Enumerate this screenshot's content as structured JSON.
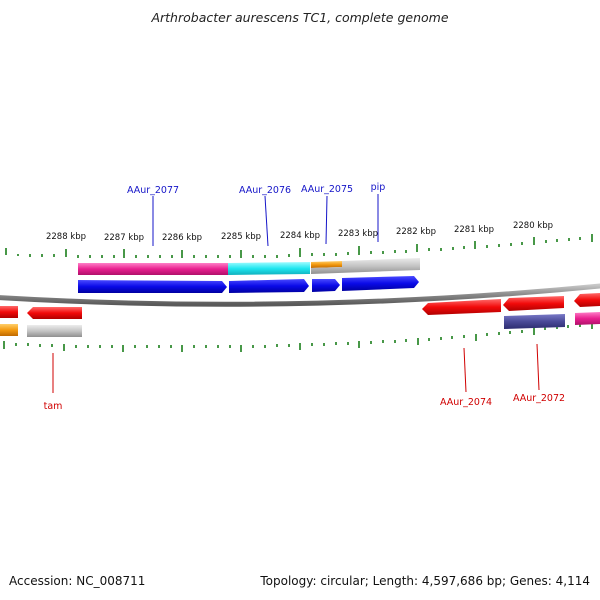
{
  "title": "Arthrobacter aurescens TC1, complete genome",
  "footer": {
    "accession": "Accession: NC_008711",
    "summary": "Topology: circular; Length: 4,597,686 bp; Genes: 4,114"
  },
  "colors": {
    "backbone": "#808080",
    "ticks": "#1a7f1a",
    "forward_label": "#1515c8",
    "reverse_label": "#d00000"
  },
  "scale_labels": [
    "2288 kbp",
    "2287 kbp",
    "2286 kbp",
    "2285 kbp",
    "2284 kbp",
    "2283 kbp",
    "2282 kbp",
    "2281 kbp",
    "2280 kbp"
  ],
  "gene_labels": {
    "forward": [
      "AAur_2077",
      "AAur_2076",
      "AAur_2075",
      "pip"
    ],
    "reverse": [
      "tam",
      "AAur_2074",
      "AAur_2072"
    ]
  }
}
